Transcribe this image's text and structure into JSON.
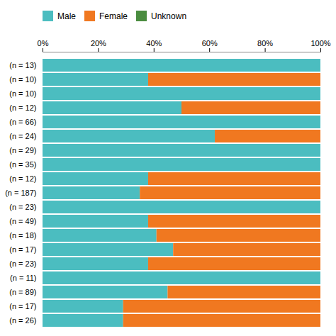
{
  "chart_data": {
    "type": "bar",
    "orientation": "horizontal",
    "stacked": true,
    "categories": [
      "(n = 13)",
      "(n = 10)",
      "(n = 10)",
      "(n = 12)",
      "(n = 66)",
      "(n = 24)",
      "(n = 29)",
      "(n = 35)",
      "(n = 12)",
      "(n = 187)",
      "(n = 23)",
      "(n = 49)",
      "(n = 18)",
      "(n = 17)",
      "(n = 23)",
      "(n = 11)",
      "(n = 89)",
      "(n = 17)",
      "(n = 26)"
    ],
    "series": [
      {
        "name": "Male",
        "color": "#4BBDC0",
        "values": [
          100,
          38,
          100,
          50,
          100,
          62,
          100,
          100,
          38,
          35,
          100,
          38,
          41,
          47,
          38,
          100,
          45,
          29,
          29
        ]
      },
      {
        "name": "Female",
        "color": "#F07820",
        "values": [
          0,
          62,
          0,
          50,
          0,
          38,
          0,
          0,
          62,
          65,
          0,
          62,
          59,
          53,
          62,
          0,
          55,
          71,
          71
        ]
      },
      {
        "name": "Unknown",
        "color": "#4A8C3F",
        "values": [
          0,
          0,
          0,
          0,
          0,
          0,
          0,
          0,
          0,
          0,
          0,
          0,
          0,
          0,
          0,
          0,
          0,
          0,
          0
        ]
      }
    ],
    "xlim": [
      0,
      100
    ],
    "xticks": [
      {
        "value": 0,
        "label": "0%"
      },
      {
        "value": 20,
        "label": "20%"
      },
      {
        "value": 40,
        "label": "40%"
      },
      {
        "value": 60,
        "label": "60%"
      },
      {
        "value": 80,
        "label": "80%"
      },
      {
        "value": 100,
        "label": "100%"
      }
    ],
    "grid": false,
    "legend": "top"
  }
}
